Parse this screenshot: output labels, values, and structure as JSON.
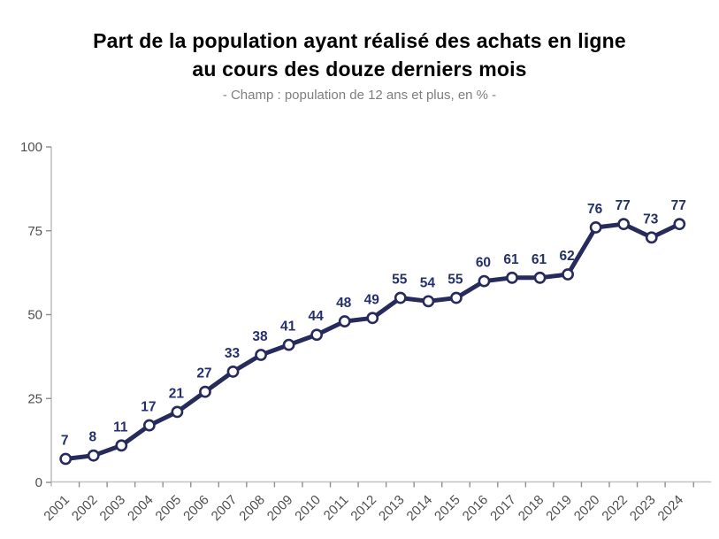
{
  "header": {
    "title_line1": "Part de la population ayant réalisé des achats en ligne",
    "title_line2": "au cours des douze derniers mois",
    "subtitle": "- Champ : population de 12 ans et plus, en % -"
  },
  "chart_data": {
    "type": "line",
    "title": "Part de la population ayant réalisé des achats en ligne au cours des douze derniers mois",
    "subtitle": "- Champ : population de 12 ans et plus, en % -",
    "categories": [
      "2001",
      "2002",
      "2003",
      "2004",
      "2005",
      "2006",
      "2007",
      "2008",
      "2009",
      "2010",
      "2011",
      "2012",
      "2013",
      "2014",
      "2015",
      "2016",
      "2017",
      "2018",
      "2019",
      "2020",
      "2022",
      "2023",
      "2024"
    ],
    "values": [
      7,
      8,
      11,
      17,
      21,
      27,
      33,
      38,
      41,
      44,
      48,
      49,
      55,
      54,
      55,
      60,
      61,
      61,
      62,
      76,
      77,
      73,
      77
    ],
    "unit": "%",
    "ylim": [
      0,
      100
    ],
    "yticks": [
      0,
      25,
      50,
      75,
      100
    ],
    "grid": false,
    "legend": "none",
    "data_labels": true,
    "colors": {
      "line": "#272b5b",
      "marker_fill": "#ffffff",
      "marker_stroke": "#272b5b",
      "value_label": "#24306b",
      "axis": "#c2c2c2",
      "tick": "#8f8f8f",
      "axis_label": "#4f4f4f",
      "title": "#000000",
      "subtitle": "#7f7f7f"
    }
  }
}
